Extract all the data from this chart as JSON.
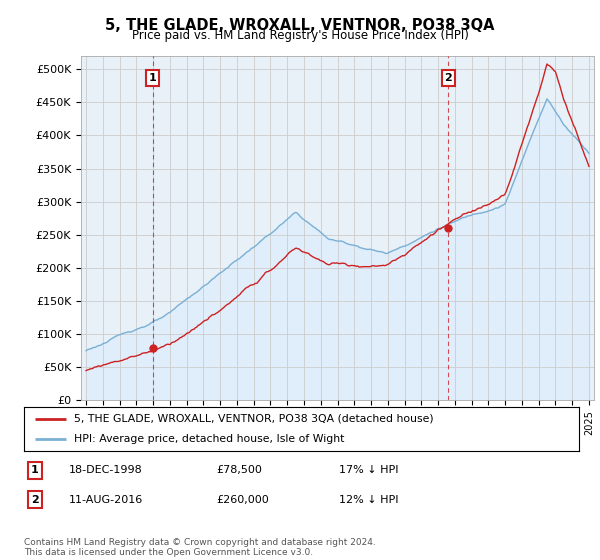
{
  "title": "5, THE GLADE, WROXALL, VENTNOR, PO38 3QA",
  "subtitle": "Price paid vs. HM Land Registry's House Price Index (HPI)",
  "ylim": [
    0,
    520000
  ],
  "yticks": [
    0,
    50000,
    100000,
    150000,
    200000,
    250000,
    300000,
    350000,
    400000,
    450000,
    500000
  ],
  "ytick_labels": [
    "£0",
    "£50K",
    "£100K",
    "£150K",
    "£200K",
    "£250K",
    "£300K",
    "£350K",
    "£400K",
    "£450K",
    "£500K"
  ],
  "hpi_color": "#7ab0d4",
  "price_color": "#cc2222",
  "hpi_fill_color": "#ddeeff",
  "marker1_year": 1998.97,
  "marker1_price": 78500,
  "marker2_year": 2016.62,
  "marker2_price": 260000,
  "legend_line1": "5, THE GLADE, WROXALL, VENTNOR, PO38 3QA (detached house)",
  "legend_line2": "HPI: Average price, detached house, Isle of Wight",
  "note1_date": "18-DEC-1998",
  "note1_price": "£78,500",
  "note1_hpi": "17% ↓ HPI",
  "note2_date": "11-AUG-2016",
  "note2_price": "£260,000",
  "note2_hpi": "12% ↓ HPI",
  "footer": "Contains HM Land Registry data © Crown copyright and database right 2024.\nThis data is licensed under the Open Government Licence v3.0.",
  "background_color": "#ffffff",
  "grid_color": "#cccccc"
}
